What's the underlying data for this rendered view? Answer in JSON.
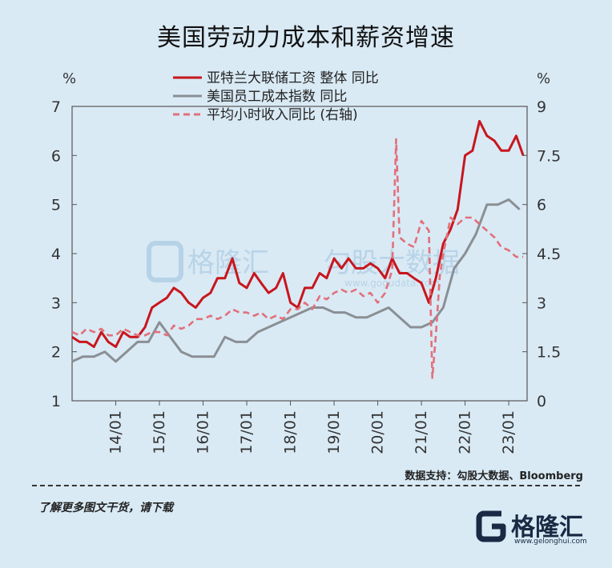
{
  "title": "美国劳动力成本和薪资增速",
  "unit_left": "%",
  "unit_right": "%",
  "watermark": {
    "brand": "格隆汇",
    "cn": "勾股大数据",
    "url": "www.gogudata.com"
  },
  "source": "数据支持：勾股大数据、Bloomberg",
  "footer_note": "了解更多图文干货，请下载",
  "brand": {
    "name": "格隆汇",
    "url": "www.gelonghui.com"
  },
  "colors": {
    "background": "#d9eaf5",
    "series_atlanta": "#c8161d",
    "series_eci": "#8a8f94",
    "series_ahe": "#e2707a",
    "axis": "#555555",
    "brand_dark": "#1a2a44"
  },
  "chart_data": {
    "type": "line",
    "x_axis": {
      "tick_labels": [
        "14/01",
        "15/01",
        "16/01",
        "17/01",
        "18/01",
        "19/01",
        "20/01",
        "21/01",
        "22/01",
        "23/01"
      ],
      "tick_positions": [
        2014.0,
        2015.0,
        2016.0,
        2017.0,
        2018.0,
        2019.0,
        2020.0,
        2021.0,
        2022.0,
        2023.0
      ],
      "range": [
        2013.0,
        2023.42
      ]
    },
    "y_left": {
      "range": [
        1,
        7
      ],
      "ticks": [
        1,
        2,
        3,
        4,
        5,
        6,
        7
      ],
      "unit": "%"
    },
    "y_right": {
      "range": [
        0,
        9
      ],
      "ticks": [
        "0",
        "1.5",
        "3",
        "4.5",
        "6",
        "7.5",
        "9"
      ],
      "tick_values": [
        0,
        1.5,
        3,
        4.5,
        6,
        7.5,
        9
      ],
      "unit": "%"
    },
    "grid": false,
    "legend": "top-center",
    "series": [
      {
        "name": "亚特兰大联储工资 整体 同比",
        "axis": "left",
        "style": "solid",
        "color": "#c8161d",
        "x": [
          2013.0,
          2013.17,
          2013.33,
          2013.5,
          2013.67,
          2013.83,
          2014.0,
          2014.17,
          2014.33,
          2014.5,
          2014.67,
          2014.83,
          2015.0,
          2015.17,
          2015.33,
          2015.5,
          2015.67,
          2015.83,
          2016.0,
          2016.17,
          2016.33,
          2016.5,
          2016.67,
          2016.83,
          2017.0,
          2017.17,
          2017.33,
          2017.5,
          2017.67,
          2017.83,
          2018.0,
          2018.17,
          2018.33,
          2018.5,
          2018.67,
          2018.83,
          2019.0,
          2019.17,
          2019.33,
          2019.5,
          2019.67,
          2019.83,
          2020.0,
          2020.17,
          2020.33,
          2020.5,
          2020.67,
          2020.83,
          2021.0,
          2021.17,
          2021.33,
          2021.5,
          2021.67,
          2021.83,
          2022.0,
          2022.17,
          2022.33,
          2022.5,
          2022.67,
          2022.83,
          2023.0,
          2023.17,
          2023.33
        ],
        "y": [
          2.3,
          2.2,
          2.2,
          2.1,
          2.4,
          2.2,
          2.1,
          2.4,
          2.3,
          2.3,
          2.5,
          2.9,
          3.0,
          3.1,
          3.3,
          3.2,
          3.0,
          2.9,
          3.1,
          3.2,
          3.5,
          3.5,
          3.9,
          3.4,
          3.3,
          3.6,
          3.4,
          3.2,
          3.3,
          3.6,
          3.0,
          2.9,
          3.3,
          3.3,
          3.6,
          3.5,
          3.9,
          3.7,
          3.9,
          3.7,
          3.7,
          3.8,
          3.7,
          3.5,
          3.9,
          3.6,
          3.6,
          3.5,
          3.4,
          3.0,
          3.5,
          4.2,
          4.5,
          4.9,
          6.0,
          6.1,
          6.7,
          6.4,
          6.3,
          6.1,
          6.1,
          6.4,
          6.0
        ]
      },
      {
        "name": "美国员工成本指数 同比",
        "axis": "left",
        "style": "solid",
        "color": "#8a8f94",
        "x": [
          2013.0,
          2013.25,
          2013.5,
          2013.75,
          2014.0,
          2014.25,
          2014.5,
          2014.75,
          2015.0,
          2015.25,
          2015.5,
          2015.75,
          2016.0,
          2016.25,
          2016.5,
          2016.75,
          2017.0,
          2017.25,
          2017.5,
          2017.75,
          2018.0,
          2018.25,
          2018.5,
          2018.75,
          2019.0,
          2019.25,
          2019.5,
          2019.75,
          2020.0,
          2020.25,
          2020.5,
          2020.75,
          2021.0,
          2021.25,
          2021.5,
          2021.75,
          2022.0,
          2022.25,
          2022.5,
          2022.75,
          2023.0,
          2023.25
        ],
        "y": [
          1.8,
          1.9,
          1.9,
          2.0,
          1.8,
          2.0,
          2.2,
          2.2,
          2.6,
          2.3,
          2.0,
          1.9,
          1.9,
          1.9,
          2.3,
          2.2,
          2.2,
          2.4,
          2.5,
          2.6,
          2.7,
          2.8,
          2.9,
          2.9,
          2.8,
          2.8,
          2.7,
          2.7,
          2.8,
          2.9,
          2.7,
          2.5,
          2.5,
          2.6,
          2.9,
          3.7,
          4.0,
          4.4,
          5.0,
          5.0,
          5.1,
          4.9
        ]
      },
      {
        "name": "平均小时收入同比 (右轴)",
        "axis": "right",
        "style": "dashed",
        "color": "#e2707a",
        "x": [
          2013.0,
          2013.17,
          2013.33,
          2013.5,
          2013.67,
          2013.83,
          2014.0,
          2014.17,
          2014.33,
          2014.5,
          2014.67,
          2014.83,
          2015.0,
          2015.17,
          2015.33,
          2015.5,
          2015.67,
          2015.83,
          2016.0,
          2016.17,
          2016.33,
          2016.5,
          2016.67,
          2016.83,
          2017.0,
          2017.17,
          2017.33,
          2017.5,
          2017.67,
          2017.83,
          2018.0,
          2018.17,
          2018.33,
          2018.5,
          2018.67,
          2018.83,
          2019.0,
          2019.17,
          2019.33,
          2019.5,
          2019.67,
          2019.83,
          2020.0,
          2020.17,
          2020.33,
          2020.42,
          2020.5,
          2020.67,
          2020.83,
          2021.0,
          2021.17,
          2021.25,
          2021.33,
          2021.42,
          2021.5,
          2021.67,
          2021.83,
          2022.0,
          2022.17,
          2022.33,
          2022.5,
          2022.67,
          2022.83,
          2023.0,
          2023.17,
          2023.33
        ],
        "y": [
          2.1,
          2.0,
          2.2,
          2.1,
          2.2,
          2.0,
          2.0,
          2.2,
          2.1,
          2.0,
          2.0,
          2.1,
          2.1,
          2.0,
          2.3,
          2.2,
          2.3,
          2.5,
          2.5,
          2.6,
          2.5,
          2.6,
          2.8,
          2.7,
          2.7,
          2.6,
          2.7,
          2.5,
          2.6,
          2.5,
          2.8,
          2.8,
          3.0,
          2.8,
          3.2,
          3.1,
          3.3,
          3.4,
          3.3,
          3.4,
          3.2,
          3.3,
          3.0,
          3.3,
          4.0,
          8.0,
          5.0,
          4.8,
          4.7,
          5.5,
          5.2,
          0.7,
          2.0,
          3.8,
          4.5,
          5.6,
          5.4,
          5.6,
          5.6,
          5.4,
          5.2,
          5.0,
          4.7,
          4.6,
          4.4,
          4.4
        ]
      }
    ]
  }
}
